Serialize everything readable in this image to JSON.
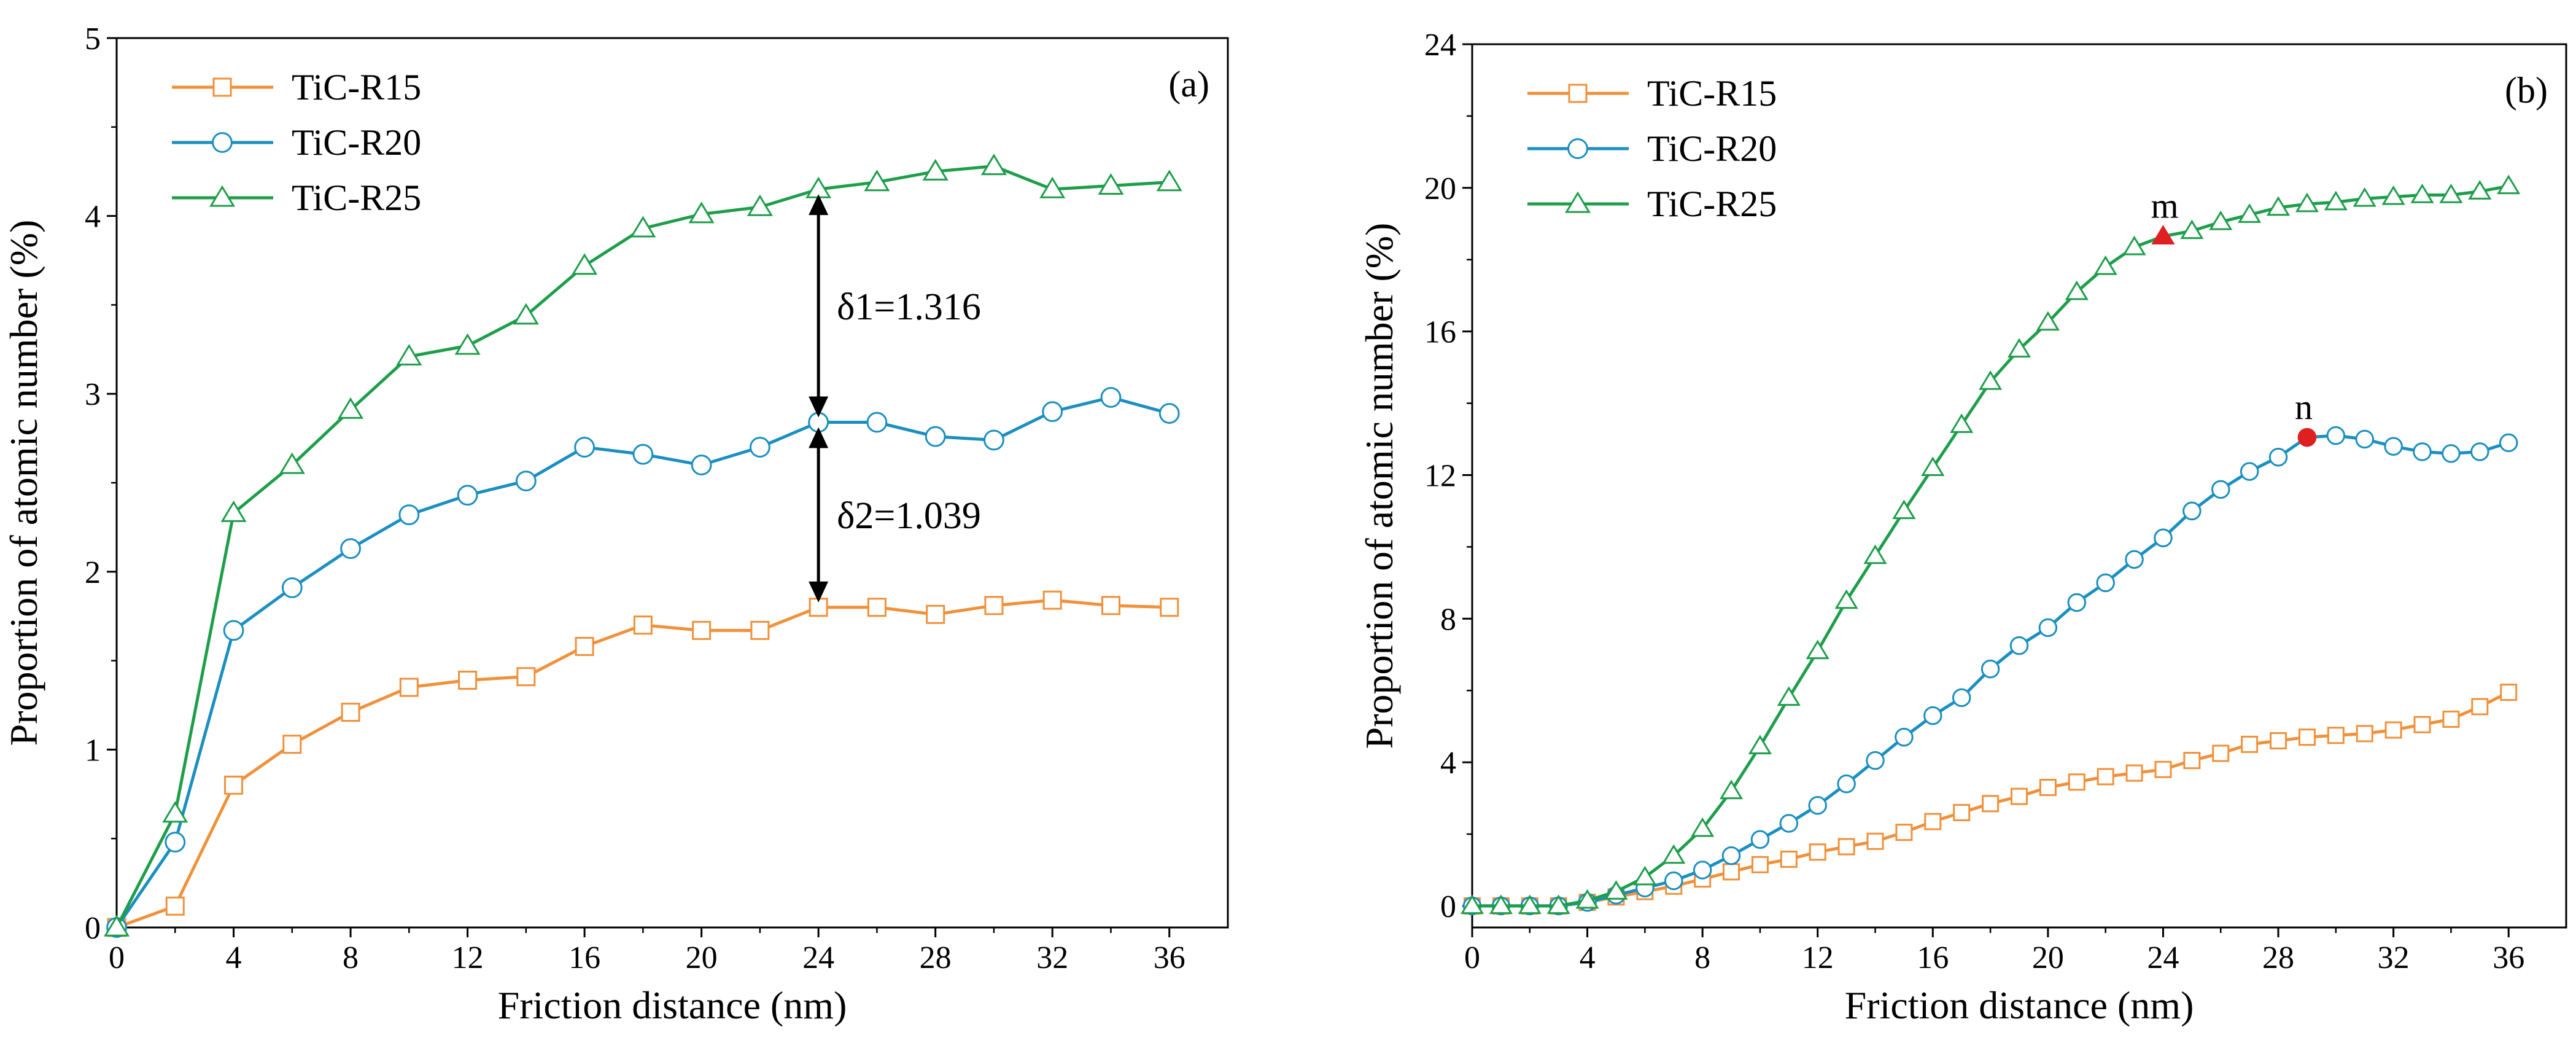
{
  "colors": {
    "TiC-R15": "#F0913A",
    "TiC-R20": "#1A8FC0",
    "TiC-R25": "#1E9E4A",
    "axis": "#000000",
    "highlight_marker": "#E02020"
  },
  "chart_data": [
    {
      "type": "line",
      "panel_label": "(a)",
      "xlabel": "Friction distance (nm)",
      "ylabel": "Proportion of atomic number (%)",
      "xlim": [
        0,
        38
      ],
      "ylim": [
        0,
        5
      ],
      "xticks": [
        0,
        4,
        8,
        12,
        16,
        20,
        24,
        28,
        32,
        36
      ],
      "yticks": [
        0,
        1,
        2,
        3,
        4,
        5
      ],
      "grid": false,
      "legend": "top-left",
      "series": [
        {
          "name": "TiC-R15",
          "marker": "square",
          "x": [
            0,
            2,
            4,
            6,
            8,
            10,
            12,
            14,
            16,
            18,
            20,
            22,
            24,
            26,
            28,
            30,
            32,
            34,
            36
          ],
          "values": [
            0,
            0.12,
            0.8,
            1.03,
            1.21,
            1.35,
            1.39,
            1.41,
            1.58,
            1.7,
            1.67,
            1.67,
            1.8,
            1.8,
            1.76,
            1.81,
            1.84,
            1.81,
            1.8
          ]
        },
        {
          "name": "TiC-R20",
          "marker": "circle",
          "x": [
            0,
            2,
            4,
            6,
            8,
            10,
            12,
            14,
            16,
            18,
            20,
            22,
            24,
            26,
            28,
            30,
            32,
            34,
            36
          ],
          "values": [
            0,
            0.48,
            1.67,
            1.91,
            2.13,
            2.32,
            2.43,
            2.51,
            2.7,
            2.66,
            2.6,
            2.7,
            2.84,
            2.84,
            2.76,
            2.74,
            2.9,
            2.98,
            2.89
          ]
        },
        {
          "name": "TiC-R25",
          "marker": "triangle",
          "x": [
            0,
            2,
            4,
            6,
            8,
            10,
            12,
            14,
            16,
            18,
            20,
            22,
            24,
            26,
            28,
            30,
            32,
            34,
            36
          ],
          "values": [
            0,
            0.64,
            2.33,
            2.6,
            2.91,
            3.21,
            3.27,
            3.44,
            3.72,
            3.93,
            4.01,
            4.05,
            4.15,
            4.19,
            4.25,
            4.28,
            4.15,
            4.17,
            4.19
          ]
        }
      ],
      "annotations": [
        {
          "text": "δ1=1.316",
          "x": 24,
          "y_from": 2.84,
          "y_to": 4.15
        },
        {
          "text": "δ2=1.039",
          "x": 24,
          "y_from": 1.8,
          "y_to": 2.84
        }
      ]
    },
    {
      "type": "line",
      "panel_label": "(b)",
      "xlabel": "Friction distance (nm)",
      "ylabel": "Proportion of atomic number (%)",
      "xlim": [
        0,
        38
      ],
      "ylim": [
        -0.6,
        24
      ],
      "xticks": [
        0,
        4,
        8,
        12,
        16,
        20,
        24,
        28,
        32,
        36
      ],
      "yticks": [
        0,
        4,
        8,
        12,
        16,
        20,
        24
      ],
      "grid": false,
      "legend": "top-left",
      "series": [
        {
          "name": "TiC-R15",
          "marker": "square",
          "x": [
            0,
            1,
            2,
            3,
            4,
            5,
            6,
            7,
            8,
            9,
            10,
            11,
            12,
            13,
            14,
            15,
            16,
            17,
            18,
            19,
            20,
            21,
            22,
            23,
            24,
            25,
            26,
            27,
            28,
            29,
            30,
            31,
            32,
            33,
            34,
            35,
            36
          ],
          "values": [
            0,
            0,
            0,
            0,
            0.1,
            0.25,
            0.4,
            0.55,
            0.75,
            0.95,
            1.15,
            1.3,
            1.5,
            1.65,
            1.8,
            2.05,
            2.35,
            2.6,
            2.85,
            3.05,
            3.3,
            3.45,
            3.6,
            3.7,
            3.8,
            4.05,
            4.25,
            4.5,
            4.6,
            4.7,
            4.75,
            4.8,
            4.9,
            5.05,
            5.2,
            5.55,
            5.95
          ]
        },
        {
          "name": "TiC-R20",
          "marker": "circle",
          "x": [
            0,
            1,
            2,
            3,
            4,
            5,
            6,
            7,
            8,
            9,
            10,
            11,
            12,
            13,
            14,
            15,
            16,
            17,
            18,
            19,
            20,
            21,
            22,
            23,
            24,
            25,
            26,
            27,
            28,
            29,
            30,
            31,
            32,
            33,
            34,
            35,
            36
          ],
          "values": [
            0,
            0,
            0,
            0,
            0.1,
            0.3,
            0.5,
            0.7,
            1.0,
            1.4,
            1.85,
            2.3,
            2.8,
            3.4,
            4.05,
            4.7,
            5.3,
            5.8,
            6.6,
            7.25,
            7.75,
            8.45,
            9.0,
            9.65,
            10.25,
            11.0,
            11.6,
            12.1,
            12.5,
            13.05,
            13.1,
            13.0,
            12.8,
            12.65,
            12.6,
            12.65,
            12.9
          ]
        },
        {
          "name": "TiC-R25",
          "marker": "triangle",
          "x": [
            0,
            1,
            2,
            3,
            4,
            5,
            6,
            7,
            8,
            9,
            10,
            11,
            12,
            13,
            14,
            15,
            16,
            17,
            18,
            19,
            20,
            21,
            22,
            23,
            24,
            25,
            26,
            27,
            28,
            29,
            30,
            31,
            32,
            33,
            34,
            35,
            36
          ],
          "values": [
            0,
            0,
            0,
            0,
            0.15,
            0.4,
            0.8,
            1.4,
            2.15,
            3.2,
            4.45,
            5.8,
            7.1,
            8.5,
            9.75,
            11.0,
            12.2,
            13.4,
            14.6,
            15.5,
            16.25,
            17.1,
            17.8,
            18.35,
            18.65,
            18.8,
            19.05,
            19.25,
            19.45,
            19.55,
            19.6,
            19.7,
            19.75,
            19.8,
            19.8,
            19.9,
            20.05
          ]
        }
      ],
      "highlighted_points": [
        {
          "label": "m",
          "series": "TiC-R25",
          "x": 24,
          "y": 18.65
        },
        {
          "label": "n",
          "series": "TiC-R20",
          "x": 29,
          "y": 13.05
        }
      ]
    }
  ]
}
